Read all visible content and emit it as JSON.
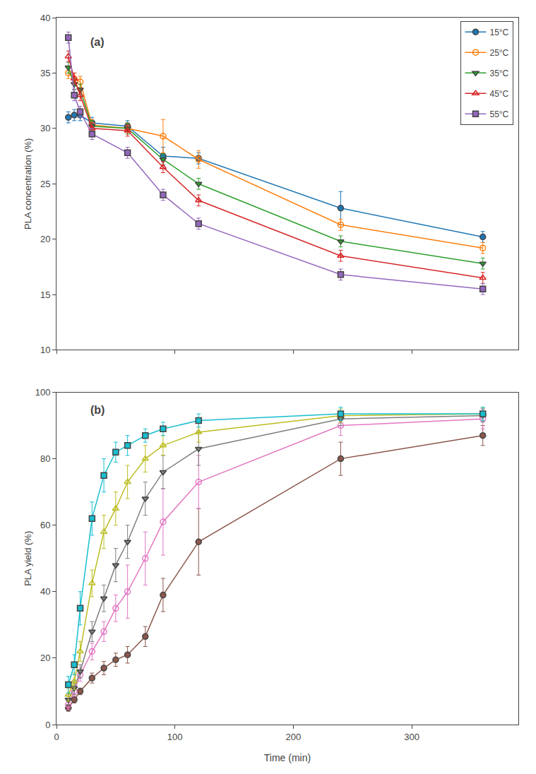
{
  "chart_data": [
    {
      "type": "line",
      "title": "(a)",
      "ylabel": "PLA concentration (%)",
      "xlim": [
        0,
        390
      ],
      "xticks": [
        0,
        100,
        200,
        300
      ],
      "ylim": [
        10,
        40
      ],
      "yticks": [
        10,
        15,
        20,
        25,
        30,
        35,
        40
      ],
      "grid": false,
      "legend": "upper right",
      "tick_labels": "y",
      "series": [
        {
          "name": "15°C",
          "marker": "circle",
          "x": [
            10,
            15,
            20,
            30,
            60,
            90,
            120,
            240,
            360
          ],
          "values": [
            31.0,
            31.2,
            31.2,
            30.5,
            30.2,
            27.5,
            27.3,
            22.8,
            20.2
          ],
          "yerr": [
            0.5,
            0.5,
            0.5,
            0.5,
            0.5,
            0.8,
            0.5,
            1.5,
            0.5
          ]
        },
        {
          "name": "25°C",
          "marker": "circle-open",
          "x": [
            10,
            15,
            20,
            30,
            60,
            90,
            120,
            240,
            360
          ],
          "values": [
            35.0,
            34.5,
            34.2,
            30.3,
            30.0,
            29.3,
            27.2,
            21.3,
            19.2
          ],
          "yerr": [
            0.5,
            0.5,
            0.5,
            0.5,
            0.5,
            1.5,
            0.8,
            0.5,
            0.5
          ]
        },
        {
          "name": "35°C",
          "marker": "triangle-down",
          "x": [
            10,
            15,
            20,
            30,
            60,
            90,
            120,
            240,
            360
          ],
          "values": [
            35.5,
            34.0,
            33.5,
            30.2,
            30.0,
            27.2,
            25.0,
            19.8,
            17.8
          ],
          "yerr": [
            0.5,
            0.5,
            0.5,
            0.5,
            0.5,
            0.5,
            0.5,
            0.5,
            0.5
          ]
        },
        {
          "name": "45°C",
          "marker": "triangle-up-open",
          "x": [
            10,
            15,
            20,
            30,
            60,
            90,
            120,
            240,
            360
          ],
          "values": [
            36.5,
            34.5,
            33.0,
            30.0,
            29.8,
            26.5,
            23.5,
            18.5,
            16.5
          ],
          "yerr": [
            0.5,
            0.5,
            0.5,
            0.5,
            0.5,
            0.5,
            0.5,
            0.5,
            0.5
          ]
        },
        {
          "name": "55°C",
          "marker": "square",
          "x": [
            10,
            15,
            20,
            30,
            60,
            90,
            120,
            240,
            360
          ],
          "values": [
            38.2,
            33.0,
            31.5,
            29.5,
            27.8,
            24.0,
            21.4,
            16.8,
            15.5
          ],
          "yerr": [
            0.5,
            0.5,
            0.5,
            0.5,
            0.5,
            0.5,
            0.5,
            0.5,
            0.5
          ]
        }
      ]
    },
    {
      "type": "line",
      "title": "(b)",
      "xlabel": "Time (min)",
      "ylabel": "PLA yield (%)",
      "xlim": [
        0,
        390
      ],
      "xticks": [
        0,
        100,
        200,
        300
      ],
      "ylim": [
        0,
        100
      ],
      "yticks": [
        0,
        20,
        40,
        60,
        80,
        100
      ],
      "grid": false,
      "series": [
        {
          "name": "15°C",
          "marker": "circle",
          "x": [
            10,
            15,
            20,
            30,
            40,
            50,
            60,
            75,
            90,
            120,
            240,
            360
          ],
          "values": [
            5.0,
            7.5,
            10.0,
            14.0,
            17.0,
            19.5,
            21.0,
            26.5,
            39.0,
            55.0,
            80.0,
            87.0
          ],
          "yerr": [
            1.0,
            1.0,
            1.0,
            1.5,
            2.0,
            2.0,
            2.5,
            3.0,
            5.0,
            10.0,
            5.0,
            3.0
          ]
        },
        {
          "name": "25°C",
          "marker": "circle-open",
          "x": [
            10,
            15,
            20,
            30,
            40,
            50,
            60,
            75,
            90,
            120,
            240,
            360
          ],
          "values": [
            6.0,
            10.0,
            15.0,
            22.0,
            28.0,
            35.0,
            40.0,
            50.0,
            61.0,
            73.0,
            90.0,
            92.0
          ],
          "yerr": [
            1.5,
            1.5,
            2.0,
            2.5,
            3.0,
            4.0,
            8.0,
            8.0,
            10.0,
            8.0,
            3.0,
            3.0
          ]
        },
        {
          "name": "35°C",
          "marker": "triangle-down",
          "x": [
            10,
            15,
            20,
            30,
            40,
            50,
            60,
            75,
            90,
            120,
            240,
            360
          ],
          "values": [
            7.5,
            11.0,
            16.0,
            28.0,
            38.0,
            48.0,
            55.0,
            68.0,
            76.0,
            83.0,
            92.0,
            93.0
          ],
          "yerr": [
            1.5,
            2.0,
            2.0,
            3.0,
            4.0,
            5.0,
            5.0,
            5.0,
            5.0,
            5.0,
            2.0,
            2.0
          ]
        },
        {
          "name": "45°C",
          "marker": "triangle-up-open",
          "x": [
            10,
            15,
            20,
            30,
            40,
            50,
            60,
            75,
            90,
            120,
            240,
            360
          ],
          "values": [
            9.0,
            13.0,
            22.0,
            42.5,
            58.0,
            65.0,
            73.0,
            80.0,
            84.0,
            88.0,
            93.0,
            93.5
          ],
          "yerr": [
            2.0,
            2.5,
            3.0,
            4.0,
            5.0,
            5.0,
            5.0,
            4.0,
            3.0,
            3.0,
            2.0,
            2.0
          ]
        },
        {
          "name": "55°C",
          "marker": "square",
          "x": [
            10,
            15,
            20,
            30,
            40,
            50,
            60,
            75,
            90,
            120,
            240,
            360
          ],
          "values": [
            12.0,
            18.0,
            35.0,
            62.0,
            75.0,
            82.0,
            84.0,
            87.0,
            89.0,
            91.5,
            93.5,
            93.5
          ],
          "yerr": [
            2.5,
            3.0,
            5.0,
            5.0,
            5.0,
            3.0,
            3.0,
            2.0,
            2.0,
            2.0,
            2.0,
            2.0
          ]
        }
      ]
    }
  ]
}
